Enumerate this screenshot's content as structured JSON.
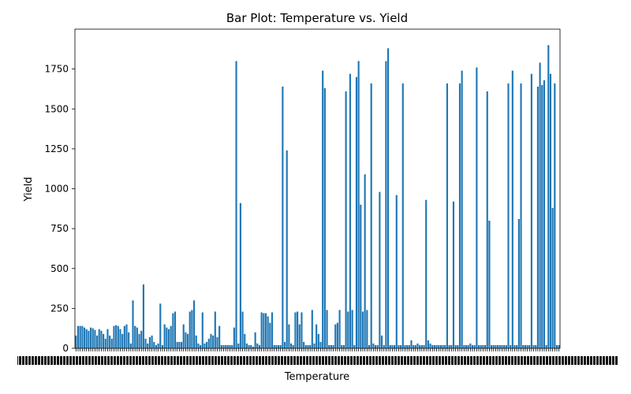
{
  "chart_data": {
    "type": "bar",
    "title": "Bar Plot: Temperature vs. Yield",
    "xlabel": "Temperature",
    "ylabel": "Yield",
    "ylim": [
      0,
      2000
    ],
    "yticks": [
      0,
      250,
      500,
      750,
      1000,
      1250,
      1500,
      1750
    ],
    "color": "#1f77b4",
    "grid": false,
    "legend": "none",
    "x_ticks_overlapping": true,
    "series": [
      {
        "values": [
          80,
          140,
          140,
          140,
          130,
          120,
          110,
          130,
          125,
          115,
          80,
          120,
          110,
          90,
          60,
          120,
          80,
          60,
          140,
          145,
          140,
          120,
          90,
          140,
          150,
          100,
          30,
          300,
          140,
          130,
          90,
          110,
          400,
          60,
          30,
          70,
          80,
          40,
          20,
          30,
          280,
          20,
          150,
          130,
          120,
          140,
          220,
          230,
          40,
          40,
          40,
          150,
          100,
          90,
          230,
          240,
          300,
          80,
          30,
          20,
          225,
          30,
          40,
          60,
          90,
          80,
          230,
          70,
          140,
          20,
          20,
          20,
          20,
          20,
          20,
          130,
          1800,
          30,
          910,
          230,
          90,
          30,
          20,
          20,
          10,
          100,
          30,
          20,
          225,
          220,
          220,
          200,
          160,
          225,
          20,
          20,
          20,
          20,
          1640,
          40,
          1240,
          150,
          30,
          20,
          225,
          230,
          150,
          225,
          40,
          20,
          20,
          20,
          240,
          30,
          150,
          90,
          40,
          1740,
          1630,
          240,
          20,
          20,
          20,
          150,
          160,
          240,
          20,
          20,
          1610,
          230,
          1720,
          240,
          20,
          1700,
          1800,
          900,
          230,
          1090,
          240,
          20,
          1660,
          30,
          20,
          20,
          980,
          80,
          20,
          1800,
          1880,
          20,
          20,
          20,
          960,
          20,
          20,
          1660,
          20,
          20,
          20,
          50,
          20,
          20,
          30,
          20,
          20,
          20,
          930,
          50,
          30,
          20,
          20,
          20,
          20,
          20,
          20,
          20,
          1660,
          20,
          20,
          920,
          20,
          20,
          1660,
          1740,
          20,
          20,
          20,
          30,
          20,
          20,
          1760,
          20,
          20,
          20,
          20,
          1610,
          800,
          20,
          20,
          20,
          20,
          20,
          20,
          20,
          20,
          1660,
          20,
          1740,
          20,
          20,
          810,
          1660,
          20,
          20,
          20,
          20,
          1720,
          20,
          20,
          1640,
          1790,
          1650,
          1680,
          20,
          1900,
          1720,
          880,
          1660,
          20,
          20
        ]
      }
    ]
  }
}
